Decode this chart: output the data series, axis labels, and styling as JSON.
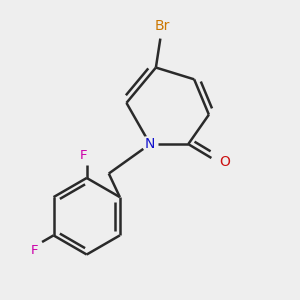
{
  "background_color": "#eeeeee",
  "bond_color": "#2a2a2a",
  "bond_width": 1.8,
  "atoms": {
    "Br": {
      "color": "#cc7700"
    },
    "N": {
      "color": "#1111cc"
    },
    "O": {
      "color": "#cc1111"
    },
    "F": {
      "color": "#cc00aa"
    }
  },
  "figsize": [
    3.0,
    3.0
  ],
  "dpi": 100
}
